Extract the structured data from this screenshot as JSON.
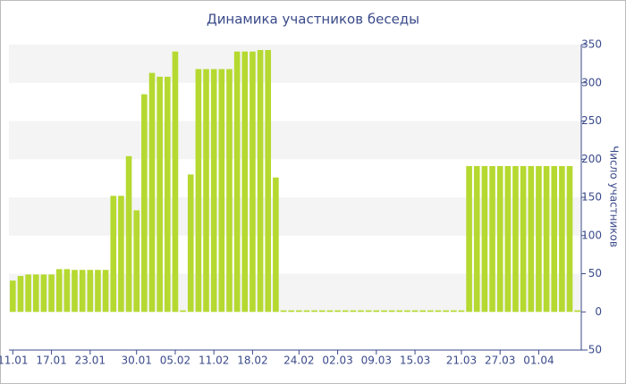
{
  "chart_data": {
    "type": "bar",
    "title": "Динамика участников беседы",
    "y_label": "Число участников",
    "categories": [
      "11.01",
      null,
      null,
      null,
      null,
      "17.01",
      null,
      null,
      null,
      null,
      "23.01",
      null,
      null,
      null,
      null,
      null,
      "30.01",
      null,
      null,
      null,
      null,
      "05.02",
      null,
      null,
      null,
      null,
      "11.02",
      null,
      null,
      null,
      null,
      "18.02",
      null,
      null,
      null,
      null,
      null,
      "24.02",
      null,
      null,
      null,
      null,
      "02.03",
      null,
      null,
      null,
      null,
      "09.03",
      null,
      null,
      null,
      null,
      "15.03",
      null,
      null,
      null,
      null,
      null,
      "21.03",
      null,
      null,
      null,
      null,
      "27.03",
      null,
      null,
      null,
      null,
      "01.04",
      null,
      null,
      null,
      null,
      null
    ],
    "values": [
      41,
      47,
      49,
      49,
      49,
      49,
      56,
      56,
      55,
      55,
      55,
      55,
      55,
      152,
      152,
      204,
      133,
      285,
      313,
      308,
      308,
      341,
      2,
      180,
      318,
      318,
      318,
      318,
      318,
      341,
      341,
      341,
      343,
      343,
      176,
      2,
      2,
      2,
      2,
      2,
      2,
      2,
      2,
      2,
      2,
      2,
      2,
      2,
      2,
      2,
      2,
      2,
      2,
      2,
      2,
      2,
      2,
      2,
      2,
      191,
      191,
      191,
      191,
      191,
      191,
      191,
      191,
      191,
      191,
      191,
      191,
      191,
      191,
      2
    ],
    "color": "#b5d930",
    "ylim": [
      -50,
      350
    ],
    "yticks": [
      -50,
      0,
      50,
      100,
      150,
      200,
      250,
      300,
      350
    ],
    "grid": true
  }
}
